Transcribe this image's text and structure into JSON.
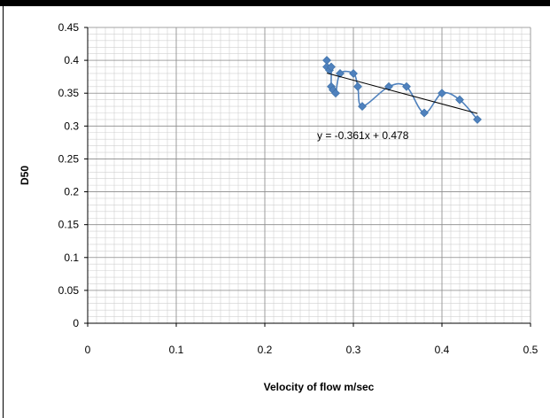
{
  "chart_data": {
    "type": "scatter",
    "title": "",
    "xlabel": "Velocity of flow m/sec",
    "ylabel": "D50",
    "xlim": [
      0,
      0.5
    ],
    "ylim": [
      0,
      0.45
    ],
    "x_ticks": [
      "0",
      "0.1",
      "0.2",
      "0.3",
      "0.4",
      "0.5"
    ],
    "y_ticks": [
      "0",
      "0.05",
      "0.1",
      "0.15",
      "0.2",
      "0.25",
      "0.3",
      "0.35",
      "0.4",
      "0.45"
    ],
    "grid": true,
    "series": [
      {
        "points": [
          {
            "x": 0.27,
            "y": 0.4
          },
          {
            "x": 0.27,
            "y": 0.39
          },
          {
            "x": 0.273,
            "y": 0.385
          },
          {
            "x": 0.275,
            "y": 0.39
          },
          {
            "x": 0.275,
            "y": 0.36
          },
          {
            "x": 0.277,
            "y": 0.355
          },
          {
            "x": 0.28,
            "y": 0.35
          },
          {
            "x": 0.285,
            "y": 0.38
          },
          {
            "x": 0.3,
            "y": 0.38
          },
          {
            "x": 0.305,
            "y": 0.36
          },
          {
            "x": 0.31,
            "y": 0.33
          },
          {
            "x": 0.34,
            "y": 0.36
          },
          {
            "x": 0.36,
            "y": 0.36
          },
          {
            "x": 0.38,
            "y": 0.32
          },
          {
            "x": 0.4,
            "y": 0.35
          },
          {
            "x": 0.42,
            "y": 0.34
          },
          {
            "x": 0.44,
            "y": 0.31
          }
        ],
        "color": "#4F81BD"
      }
    ],
    "trendline": {
      "type": "linear",
      "slope": -0.361,
      "intercept": 0.478,
      "x_range": [
        0.27,
        0.44
      ],
      "equation_label": "y = -0.361x + 0.478",
      "color": "#000000"
    }
  }
}
